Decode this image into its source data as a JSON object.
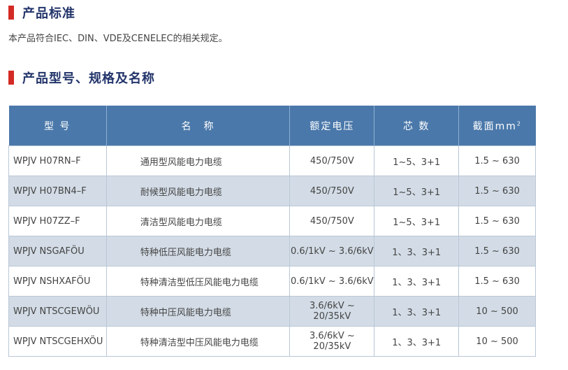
{
  "sections": [
    {
      "title": "产品标准",
      "text": "本产品符合IEC、DIN、VDE及CENELEC的相关规定。"
    },
    {
      "title": "产品型号、规格及名称"
    }
  ],
  "colors": {
    "accent_bar": "#d42a25",
    "heading": "#23356b",
    "table_header": "#4a78aa",
    "alt_row": "#d3dce6"
  },
  "table": {
    "headers": [
      "型 号",
      "名　称",
      "额定电压",
      "芯 数",
      "截面mm",
      "2"
    ],
    "rows": [
      [
        "WPJV H07RN–F",
        "通用型风能电力电缆",
        "450/750V",
        "1~5、3+1",
        "1.5 ~ 630"
      ],
      [
        "WPJV H07BN4–F",
        "耐候型风能电力电缆",
        "450/750V",
        "1~5、3+1",
        "1.5 ~ 630"
      ],
      [
        "WPJV H07ZZ–F",
        "清洁型风能电力电缆",
        "450/750V",
        "1~5、3+1",
        "1.5 ~ 630"
      ],
      [
        "WPJV NSGAFÖU",
        "特种低压风能电力电缆",
        "0.6/1kV ~ 3.6/6kV",
        "1、3、3+1",
        "1.5 ~ 630"
      ],
      [
        "WPJV NSHXAFÖU",
        "特种清洁型低压风能电力电缆",
        "0.6/1kV ~ 3.6/6kV",
        "1、3、3+1",
        "1.5 ~ 630"
      ],
      [
        "WPJV NTSCGEWÖU",
        "特种中压风能电力电缆",
        "3.6/6kV ~ 20/35kV",
        "1、3、3+1",
        "10 ~ 500"
      ],
      [
        "WPJV NTSCGEHXÖU",
        "特种清洁型中压风能电力电缆",
        "3.6/6kV ~ 20/35kV",
        "1、3、3+1",
        "10 ~ 500"
      ]
    ]
  }
}
